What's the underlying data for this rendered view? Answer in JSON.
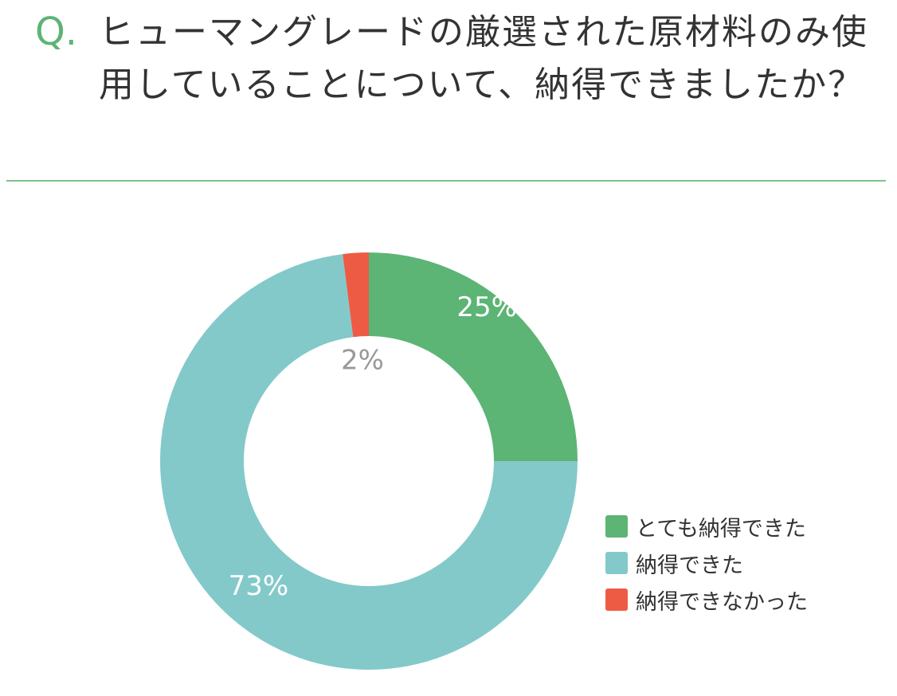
{
  "question": {
    "prefix": "Q.",
    "text": "ヒューマングレードの厳選された原材料のみ使用していることについて、納得できましたか？"
  },
  "colors": {
    "accent": "#5cb475",
    "divider": "#7cc48c"
  },
  "chart_data": {
    "type": "pie",
    "donut": true,
    "legend_position": "bottom-right",
    "categories": [
      "とても納得できた",
      "納得できた",
      "納得できなかった"
    ],
    "values": [
      25,
      73,
      2
    ],
    "labels": [
      "25%",
      "73%",
      "2%"
    ],
    "colors": [
      "#5cb475",
      "#83c9ca",
      "#ee5b44"
    ],
    "label_colors": [
      "#ffffff",
      "#ffffff",
      "#999999"
    ]
  }
}
